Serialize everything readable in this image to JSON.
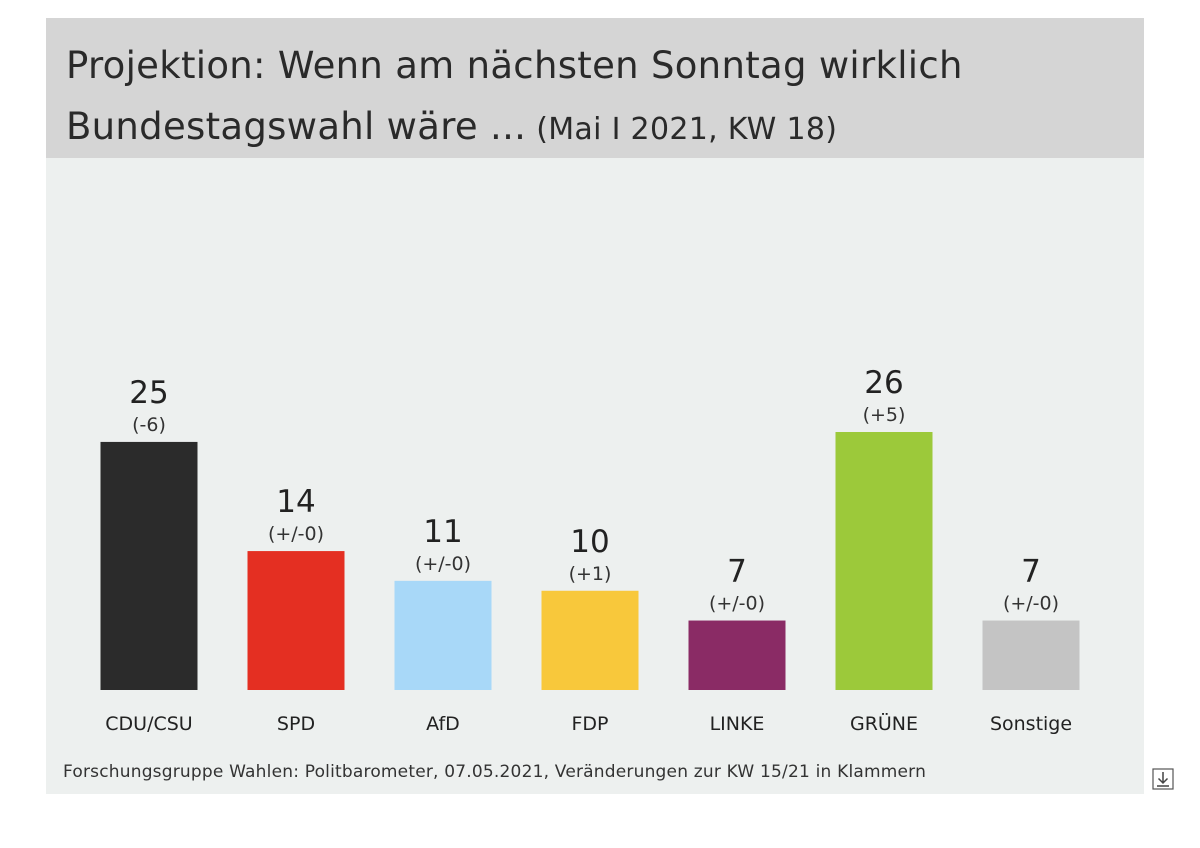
{
  "header": {
    "title_line1": "Projektion: Wenn am nächsten Sonntag wirklich",
    "title_line2": "Bundestagswahl wäre ...",
    "subtitle": "(Mai I 2021, KW 18)"
  },
  "footer": {
    "source": "Forschungsgruppe Wahlen: Politbarometer, 07.05.2021, Veränderungen zur KW 15/21 in Klammern"
  },
  "icons": {
    "download": "download-icon"
  },
  "chart_data": {
    "type": "bar",
    "title": "Projektion: Wenn am nächsten Sonntag wirklich Bundestagswahl wäre ... (Mai I 2021, KW 18)",
    "xlabel": "",
    "ylabel": "",
    "ylim": [
      0,
      26
    ],
    "grid": false,
    "legend": "none",
    "categories": [
      "CDU/CSU",
      "SPD",
      "AfD",
      "FDP",
      "LINKE",
      "GRÜNE",
      "Sonstige"
    ],
    "values": [
      25,
      14,
      11,
      10,
      7,
      26,
      7
    ],
    "changes": [
      "(-6)",
      "(+/-0)",
      "(+/-0)",
      "(+1)",
      "(+/-0)",
      "(+5)",
      "(+/-0)"
    ],
    "colors": [
      "#2b2b2b",
      "#e42f22",
      "#a8d8f8",
      "#f8c83b",
      "#8a2b65",
      "#9cc93a",
      "#c4c4c4"
    ]
  }
}
